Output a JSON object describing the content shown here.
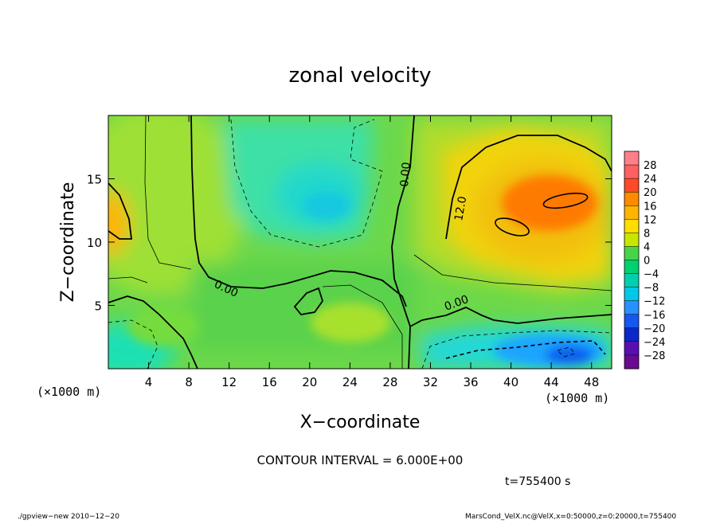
{
  "chart_data": {
    "type": "heatmap",
    "title": "zonal velocity",
    "xlabel": "X−coordinate",
    "ylabel": "Z−coordinate",
    "x_unit": "(×1000 m)",
    "y_unit": "(×1000 m)",
    "xlim": [
      0,
      50
    ],
    "ylim": [
      0,
      20
    ],
    "x_ticks": [
      4,
      8,
      12,
      16,
      20,
      24,
      28,
      32,
      36,
      40,
      44,
      48
    ],
    "y_ticks": [
      5,
      10,
      15
    ],
    "colorbar": {
      "labels": [
        "28",
        "24",
        "20",
        "16",
        "12",
        "8",
        "4",
        "0",
        "−4",
        "−8",
        "−12",
        "−16",
        "−20",
        "−24",
        "−28"
      ],
      "values": [
        28,
        24,
        20,
        16,
        12,
        8,
        4,
        0,
        -4,
        -8,
        -12,
        -16,
        -20,
        -24,
        -28
      ],
      "colors": [
        "#ff8088",
        "#ff6060",
        "#ff4a2a",
        "#ff8a00",
        "#ffb400",
        "#ffde00",
        "#c8e600",
        "#48d448",
        "#00d070",
        "#00d0b0",
        "#00c8e8",
        "#2890ff",
        "#1458f0",
        "#0a28c8",
        "#5a10b0",
        "#6a0a90"
      ]
    },
    "contour_interval_text": "CONTOUR INTERVAL = 6.000E+00",
    "contour_labels": [
      "0.00",
      "0.00",
      "0.00",
      "12.0"
    ],
    "time_text": "t=755400 s"
  },
  "footer": {
    "left": "./gpview−new   2010−12−20",
    "right": "MarsCond_VelX.nc@VelX,x=0:50000,z=0:20000,t=755400"
  }
}
